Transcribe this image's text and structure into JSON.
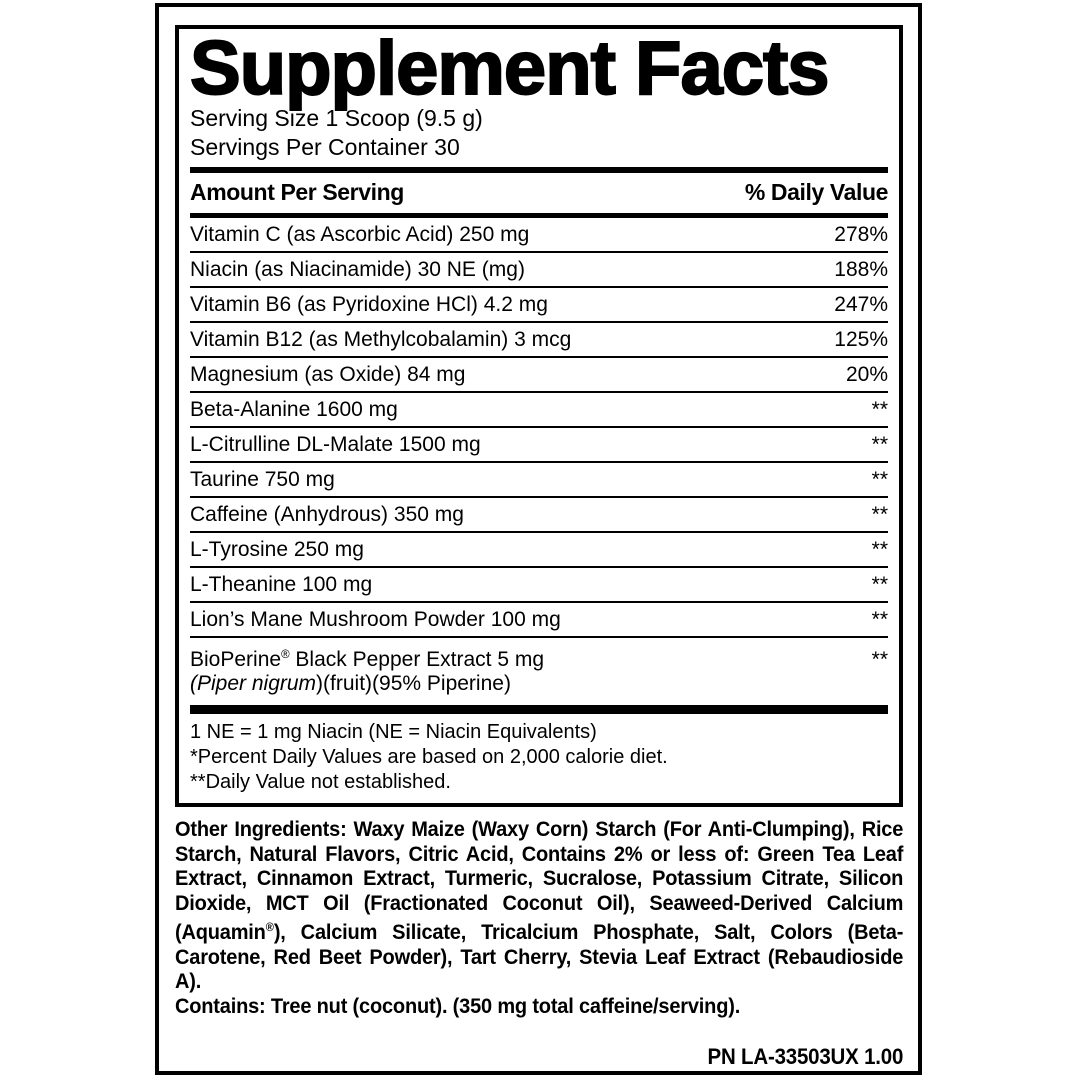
{
  "colors": {
    "text": "#000000",
    "background": "#ffffff"
  },
  "facts": {
    "title": "Supplement Facts",
    "serving_size": "Serving Size 1 Scoop (9.5 g)",
    "servings_per_container": "Servings Per Container 30",
    "amount_header": "Amount Per Serving",
    "dv_header": "% Daily Value",
    "rows": [
      {
        "name": "Vitamin C (as Ascorbic Acid) 250 mg",
        "dv": "278%"
      },
      {
        "name": "Niacin (as Niacinamide) 30 NE (mg)",
        "dv": "188%"
      },
      {
        "name": "Vitamin B6 (as Pyridoxine HCl) 4.2 mg",
        "dv": "247%"
      },
      {
        "name": "Vitamin B12 (as Methylcobalamin) 3 mcg",
        "dv": "125%"
      },
      {
        "name": "Magnesium (as Oxide) 84 mg",
        "dv": "20%"
      },
      {
        "name": "Beta-Alanine 1600 mg",
        "dv": "**"
      },
      {
        "name": "L-Citrulline DL-Malate 1500 mg",
        "dv": "**"
      },
      {
        "name": "Taurine 750 mg",
        "dv": "**"
      },
      {
        "name": "Caffeine (Anhydrous) 350 mg",
        "dv": "**"
      },
      {
        "name": "L-Tyrosine 250 mg",
        "dv": "**"
      },
      {
        "name": "L-Theanine 100 mg",
        "dv": "**"
      },
      {
        "name": "Lion’s Mane Mushroom Powder 100 mg",
        "dv": "**"
      },
      {
        "name": "BioPerine® Black Pepper Extract 5 mg",
        "name_line2_italic": "(Piper nigrum",
        "name_line2_rest": ")(fruit)(95% Piperine)",
        "dv": "**"
      }
    ],
    "footnotes": [
      "1 NE = 1 mg Niacin (NE = Niacin Equivalents)",
      "*Percent Daily Values are based on 2,000 calorie diet.",
      "**Daily Value not established."
    ],
    "other_ingredients": "Other Ingredients: Waxy Maize (Waxy Corn) Starch (For Anti-Clumping), Rice Starch, Natural Flavors, Citric Acid, Contains 2% or less of: Green Tea Leaf Extract, Cinnamon Extract, Turmeric, Sucralose, Potassium Citrate, Silicon Dioxide, MCT Oil (Fractionated Coconut Oil), Seaweed-Derived Calcium (Aquamin®), Calcium Silicate, Tricalcium Phosphate, Salt, Colors (Beta-Carotene, Red Beet Powder), Tart Cherry, Stevia Leaf Extract (Rebaudioside A).",
    "contains": "Contains: Tree nut (coconut). (350 mg total caffeine/serving).",
    "part_number": "PN LA-33503UX 1.00"
  }
}
